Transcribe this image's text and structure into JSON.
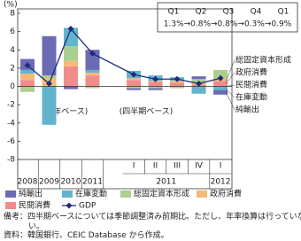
{
  "chart_data": {
    "type": "stacked_bar_line",
    "y_label": "(%)",
    "categories": [
      "2008",
      "2009",
      "2010",
      "2011",
      "I",
      "II",
      "III",
      "IV",
      "I"
    ],
    "category_years": [
      null,
      null,
      null,
      null,
      "2011",
      "2011",
      "2011",
      "2011",
      "2012"
    ],
    "series": [
      {
        "name": "純輸出",
        "color": "#6b6bb5",
        "values": [
          1.2,
          4.3,
          -0.3,
          2.2,
          -0.2,
          -0.2,
          0.0,
          0.3,
          -0.5
        ]
      },
      {
        "name": "在庫変動",
        "color": "#62b4cc",
        "values": [
          0.4,
          -4.2,
          2.0,
          0.3,
          0.8,
          0.6,
          0.4,
          -0.8,
          -0.4
        ]
      },
      {
        "name": "総固定資本形成",
        "color": "#a9d08e",
        "values": [
          -0.6,
          0.3,
          1.6,
          -0.2,
          -0.2,
          -0.2,
          -0.2,
          0.4,
          0.9
        ]
      },
      {
        "name": "政府消費",
        "color": "#f7b977",
        "values": [
          0.7,
          0.9,
          0.6,
          0.3,
          0.2,
          0.1,
          0.2,
          0.2,
          0.3
        ]
      },
      {
        "name": "民間消費",
        "color": "#f08c8c",
        "values": [
          0.7,
          0.0,
          2.2,
          1.2,
          0.7,
          0.5,
          0.4,
          0.2,
          0.6
        ]
      },
      {
        "name": "GDP",
        "type": "line",
        "color": "#1f2d78",
        "values": [
          2.3,
          0.3,
          6.3,
          3.6,
          1.3,
          0.8,
          0.8,
          0.3,
          0.9
        ]
      }
    ],
    "ylim": [
      -8,
      8
    ],
    "yticks": [
      -8,
      -6,
      -4,
      -2,
      0,
      2,
      4,
      6,
      8
    ],
    "annotations": {
      "annual": "(年ベース)",
      "quarterly": "(四半期ベース)",
      "box_quarters": [
        "Q1",
        "Q2",
        "Q3",
        "Q4",
        "Q1"
      ],
      "box_values": "1.3%→0.8%→0.8%→0.3%→0.9%"
    },
    "right_labels_order": [
      2,
      3,
      4,
      1,
      0
    ]
  },
  "notes": {
    "remark": "備考：四半期ベースについては季節調整済み前期比。ただし、年率換算は行っていない。",
    "source": "資料：韓国銀行、CEIC Database から作成。"
  }
}
